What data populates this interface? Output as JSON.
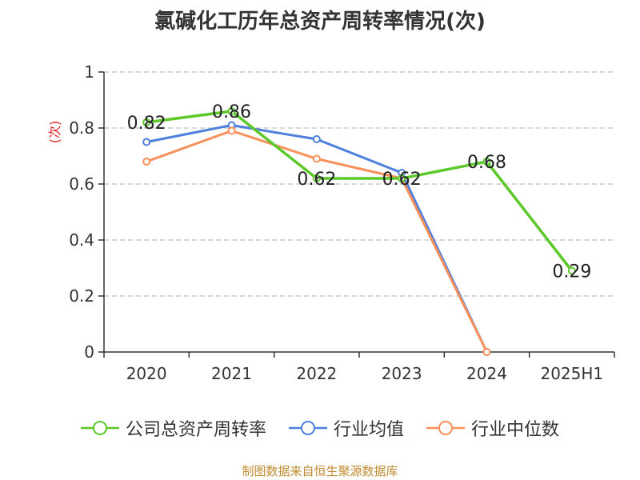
{
  "title": "氯碱化工历年总资产周转率情况(次)",
  "source": "制图数据来自恒生聚源数据库",
  "chart_data": {
    "type": "line",
    "title": "氯碱化工历年总资产周转率情况(次)",
    "ylabel": "(次)",
    "xlabel": "",
    "categories": [
      "2020",
      "2021",
      "2022",
      "2023",
      "2024",
      "2025H1"
    ],
    "ylim": [
      0,
      1
    ],
    "yticks": [
      0,
      0.2,
      0.4,
      0.6,
      0.8,
      1
    ],
    "ytick_labels": [
      "0",
      "0.2",
      "0.4",
      "0.6",
      "0.8",
      "1"
    ],
    "grid": true,
    "legend_position": "bottom",
    "series": [
      {
        "name": "公司总资产周转率",
        "color": "#5cc82a",
        "values": [
          0.82,
          0.86,
          0.62,
          0.62,
          0.68,
          0.29
        ],
        "labels": [
          "0.82",
          "0.86",
          "0.62",
          "0.62",
          "0.68",
          "0.29"
        ],
        "show_labels": true
      },
      {
        "name": "行业均值",
        "color": "#4f7fdc",
        "values": [
          0.75,
          0.81,
          0.76,
          0.64,
          0,
          null
        ],
        "show_labels": false
      },
      {
        "name": "行业中位数",
        "color": "#f98f5a",
        "values": [
          0.68,
          0.79,
          0.69,
          0.62,
          0,
          null
        ],
        "show_labels": false
      }
    ]
  }
}
